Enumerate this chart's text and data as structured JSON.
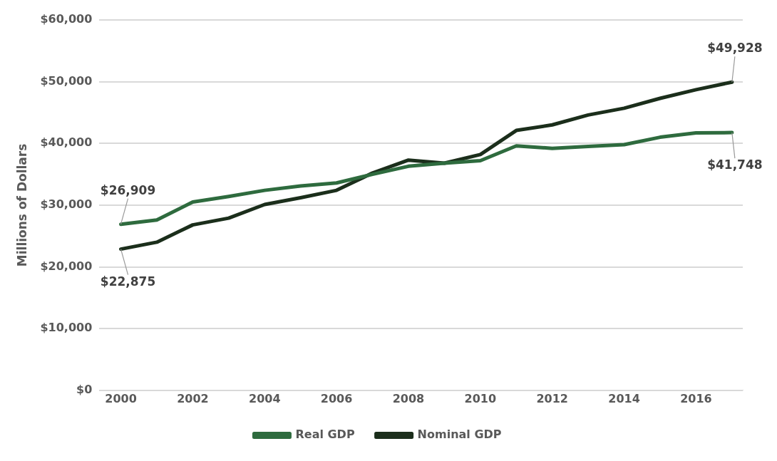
{
  "chart_data": {
    "type": "line",
    "ylabel": "Millions of Dollars",
    "x": [
      2000,
      2001,
      2002,
      2003,
      2004,
      2005,
      2006,
      2007,
      2008,
      2009,
      2010,
      2011,
      2012,
      2013,
      2014,
      2015,
      2016,
      2017
    ],
    "series": [
      {
        "name": "Real GDP",
        "color": "#2e6b3e",
        "values": [
          26909,
          27600,
          30500,
          31400,
          32400,
          33100,
          33600,
          35000,
          36300,
          36800,
          37200,
          39600,
          39200,
          39500,
          39800,
          41000,
          41700,
          41748
        ],
        "value_labels": [
          "$26,909",
          null,
          null,
          null,
          null,
          null,
          null,
          null,
          null,
          null,
          null,
          null,
          null,
          null,
          null,
          null,
          null,
          "$41,748"
        ]
      },
      {
        "name": "Nominal GDP",
        "color": "#1b2e1b",
        "values": [
          22875,
          24000,
          26800,
          27900,
          30100,
          31200,
          32400,
          35200,
          37300,
          36800,
          38200,
          42100,
          43000,
          44600,
          45700,
          47300,
          48700,
          49928
        ],
        "value_labels": [
          "$22,875",
          null,
          null,
          null,
          null,
          null,
          null,
          null,
          null,
          null,
          null,
          null,
          null,
          null,
          null,
          null,
          null,
          "$49,928"
        ]
      }
    ],
    "xlim": [
      1999.4,
      2017.3
    ],
    "xticks": [
      2000,
      2002,
      2004,
      2006,
      2008,
      2010,
      2012,
      2014,
      2016
    ],
    "ylim": [
      0,
      60000
    ],
    "yticks": [
      {
        "value": 0,
        "label": "$0"
      },
      {
        "value": 10000,
        "label": "$10,000"
      },
      {
        "value": 20000,
        "label": "$20,000"
      },
      {
        "value": 30000,
        "label": "$30,000"
      },
      {
        "value": 40000,
        "label": "$40,000"
      },
      {
        "value": 50000,
        "label": "$50,000"
      },
      {
        "value": 60000,
        "label": "$60,000"
      }
    ],
    "grid": "y",
    "legend": "bottom",
    "marker": "none",
    "line_style": "solid"
  }
}
